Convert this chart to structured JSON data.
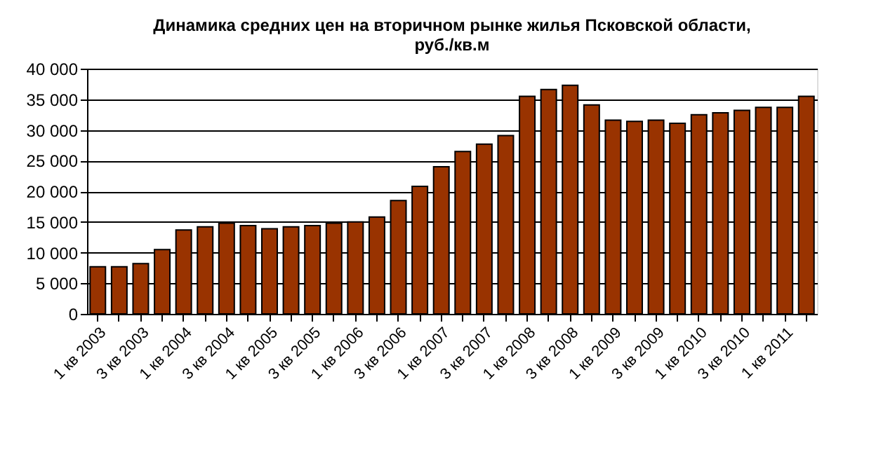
{
  "chart_data": {
    "type": "bar",
    "title": [
      "Динамика средних цен на вторичном рынке жилья Псковской области,",
      "руб./кв.м"
    ],
    "categories": [
      "1 кв 2003",
      null,
      "3 кв 2003",
      null,
      "1 кв 2004",
      null,
      "3 кв 2004",
      null,
      "1 кв 2005",
      null,
      "3 кв 2005",
      null,
      "1 кв 2006",
      null,
      "3 кв 2006",
      null,
      "1 кв 2007",
      null,
      "3 кв 2007",
      null,
      "1 кв 2008",
      null,
      "3 кв 2008",
      null,
      "1 кв 2009",
      null,
      "3 кв 2009",
      null,
      "1 кв 2010",
      null,
      "3 кв 2010",
      null,
      "1 кв 2011",
      null
    ],
    "values": [
      7700,
      7700,
      8200,
      10500,
      13700,
      14200,
      14800,
      14400,
      13900,
      14200,
      14400,
      14800,
      15000,
      15800,
      18500,
      20800,
      24000,
      26500,
      27700,
      29100,
      35500,
      36600,
      37300,
      34100,
      31600,
      31400,
      31600,
      31100,
      32500,
      32800,
      33200,
      33700,
      33700,
      35500
    ],
    "color": "#993300",
    "ylim": [
      0,
      40000
    ],
    "yticks": [
      {
        "value": 0,
        "label": "0"
      },
      {
        "value": 5000,
        "label": "5 000"
      },
      {
        "value": 10000,
        "label": "10 000"
      },
      {
        "value": 15000,
        "label": "15 000"
      },
      {
        "value": 20000,
        "label": "20 000"
      },
      {
        "value": 25000,
        "label": "25 000"
      },
      {
        "value": 30000,
        "label": "30 000"
      },
      {
        "value": 35000,
        "label": "35 000"
      },
      {
        "value": 40000,
        "label": "40 000"
      }
    ],
    "grid": "y"
  }
}
